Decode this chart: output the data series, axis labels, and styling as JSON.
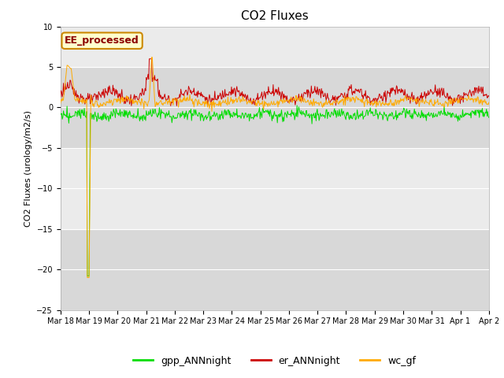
{
  "title": "CO2 Fluxes",
  "ylabel": "CO2 Fluxes (urology/m2/s)",
  "xlabel": "",
  "ylim": [
    -25,
    10
  ],
  "yticks": [
    -25,
    -20,
    -15,
    -10,
    -5,
    0,
    5,
    10
  ],
  "xtick_dates": [
    "Mar 18",
    "Mar 19",
    "Mar 20",
    "Mar 21",
    "Mar 22",
    "Mar 23",
    "Mar 24",
    "Mar 25",
    "Mar 26",
    "Mar 27",
    "Mar 28",
    "Mar 29",
    "Mar 30",
    "Mar 31",
    "Apr 1",
    "Apr 2"
  ],
  "legend_labels": [
    "gpp_ANNnight",
    "er_ANNnight",
    "wc_gf"
  ],
  "legend_colors": [
    "#00dd00",
    "#cc0000",
    "#ffaa00"
  ],
  "line_colors": {
    "gpp": "#00dd00",
    "er": "#cc0000",
    "wc": "#ffaa00"
  },
  "annotation_text": "EE_processed",
  "annotation_color": "#8B0000",
  "annotation_bg": "#ffffcc",
  "annotation_border": "#cc8800",
  "bg_color": "#ffffff",
  "plot_bg_color": "#e8e8e8",
  "band_light": "#ebebeb",
  "band_dark": "#d8d8d8",
  "title_fontsize": 11,
  "axis_fontsize": 8,
  "tick_fontsize": 7,
  "legend_fontsize": 9
}
